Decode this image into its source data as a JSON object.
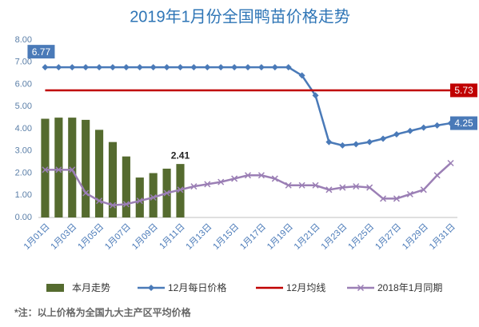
{
  "chart_data": {
    "type": "combo",
    "title": "2019年1月份全国鸭苗价格走势",
    "note": "*注：以上价格为全国九大主产区平均价格",
    "categories": [
      "1月01日",
      null,
      "1月03日",
      null,
      "1月05日",
      null,
      "1月07日",
      null,
      "1月09日",
      null,
      "1月11日",
      null,
      "1月13日",
      null,
      "1月15日",
      null,
      "1月17日",
      null,
      "1月19日",
      null,
      "1月21日",
      null,
      "1月23日",
      null,
      "1月25日",
      null,
      "1月27日",
      null,
      "1月29日",
      null,
      "1月31日"
    ],
    "ylim": [
      0,
      8
    ],
    "yticks": [
      {
        "value": 0,
        "label": "0.00"
      },
      {
        "value": 1,
        "label": "1.00"
      },
      {
        "value": 2,
        "label": "2.00"
      },
      {
        "value": 3,
        "label": "3.00"
      },
      {
        "value": 4,
        "label": "4.00"
      },
      {
        "value": 5,
        "label": "5.00"
      },
      {
        "value": 6,
        "label": "6.00"
      },
      {
        "value": 7,
        "label": "7.00"
      },
      {
        "value": 8,
        "label": "8.00"
      }
    ],
    "grid": false,
    "series": [
      {
        "name": "本月走势",
        "type": "bar",
        "color": "#556b2f",
        "marker": "none",
        "data_labels": [
          10
        ],
        "values": [
          4.45,
          4.5,
          4.5,
          4.4,
          3.95,
          3.4,
          2.75,
          1.8,
          2.0,
          2.2,
          2.41,
          null,
          null,
          null,
          null,
          null,
          null,
          null,
          null,
          null,
          null,
          null,
          null,
          null,
          null,
          null,
          null,
          null,
          null,
          null,
          null
        ]
      },
      {
        "name": "12月每日价格",
        "type": "line",
        "color": "#4a7ab8",
        "marker": "diamond",
        "data_labels": [
          0,
          30
        ],
        "values": [
          6.77,
          6.77,
          6.77,
          6.77,
          6.77,
          6.77,
          6.77,
          6.77,
          6.77,
          6.77,
          6.77,
          6.77,
          6.77,
          6.77,
          6.77,
          6.77,
          6.77,
          6.77,
          6.77,
          6.4,
          5.5,
          3.4,
          3.25,
          3.3,
          3.4,
          3.55,
          3.75,
          3.9,
          4.05,
          4.15,
          4.25
        ]
      },
      {
        "name": "12月均线",
        "type": "line",
        "color": "#c00000",
        "marker": "none",
        "data_labels": [
          30
        ],
        "values": [
          5.73,
          5.73,
          5.73,
          5.73,
          5.73,
          5.73,
          5.73,
          5.73,
          5.73,
          5.73,
          5.73,
          5.73,
          5.73,
          5.73,
          5.73,
          5.73,
          5.73,
          5.73,
          5.73,
          5.73,
          5.73,
          5.73,
          5.73,
          5.73,
          5.73,
          5.73,
          5.73,
          5.73,
          5.73,
          5.73,
          5.73
        ]
      },
      {
        "name": "2018年1月同期",
        "type": "line",
        "color": "#9b7fb5",
        "marker": "x",
        "data_labels": [],
        "values": [
          2.15,
          2.15,
          2.15,
          1.1,
          0.75,
          0.55,
          0.6,
          0.75,
          0.9,
          1.1,
          1.25,
          1.4,
          1.5,
          1.6,
          1.75,
          1.9,
          1.9,
          1.75,
          1.45,
          1.45,
          1.45,
          1.25,
          1.35,
          1.4,
          1.35,
          0.85,
          0.85,
          1.05,
          1.25,
          1.9,
          2.45
        ]
      }
    ]
  }
}
